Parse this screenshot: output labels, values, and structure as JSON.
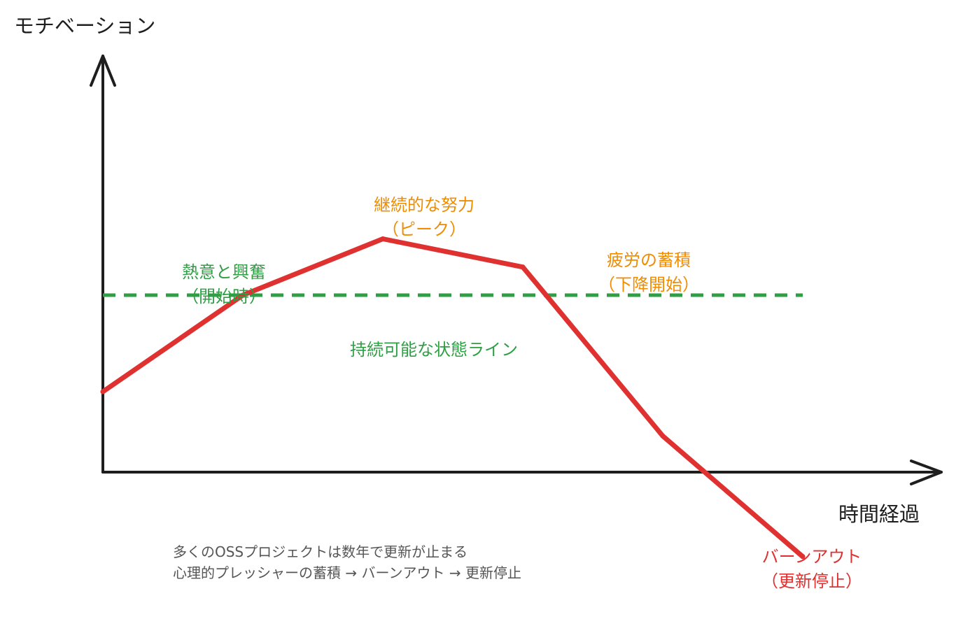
{
  "colors": {
    "axis": "#1e1e1e",
    "curve": "#e03131",
    "sustainable": "#2f9e44",
    "annotation_orange": "#f08c00",
    "note_text": "#555555"
  },
  "axes": {
    "y_label": "モチベーション",
    "x_label": "時間経過"
  },
  "chart_data": {
    "type": "line",
    "title": "",
    "xlabel": "時間経過",
    "ylabel": "モチベーション",
    "xlim": [
      0,
      100
    ],
    "ylim": [
      -20,
      100
    ],
    "series": [
      {
        "name": "モチベーション",
        "x": [
          0,
          20,
          40,
          60,
          80,
          100
        ],
        "y": [
          20,
          44,
          58,
          51,
          9,
          -21
        ]
      }
    ],
    "sustainable_level": 44
  },
  "annotations": {
    "start": {
      "line1": "熱意と興奮",
      "line2": "（開始時）"
    },
    "peak": {
      "line1": "継続的な努力",
      "line2": "（ピーク）"
    },
    "decline": {
      "line1": "疲労の蓄積",
      "line2": "（下降開始）"
    },
    "burnout": {
      "line1": "バーンアウト",
      "line2": "（更新停止）"
    },
    "sustainable": "持続可能な状態ライン"
  },
  "notes": {
    "line1": "多くのOSSプロジェクトは数年で更新が止まる",
    "line2": "心理的プレッシャーの蓄積 → バーンアウト → 更新停止"
  }
}
